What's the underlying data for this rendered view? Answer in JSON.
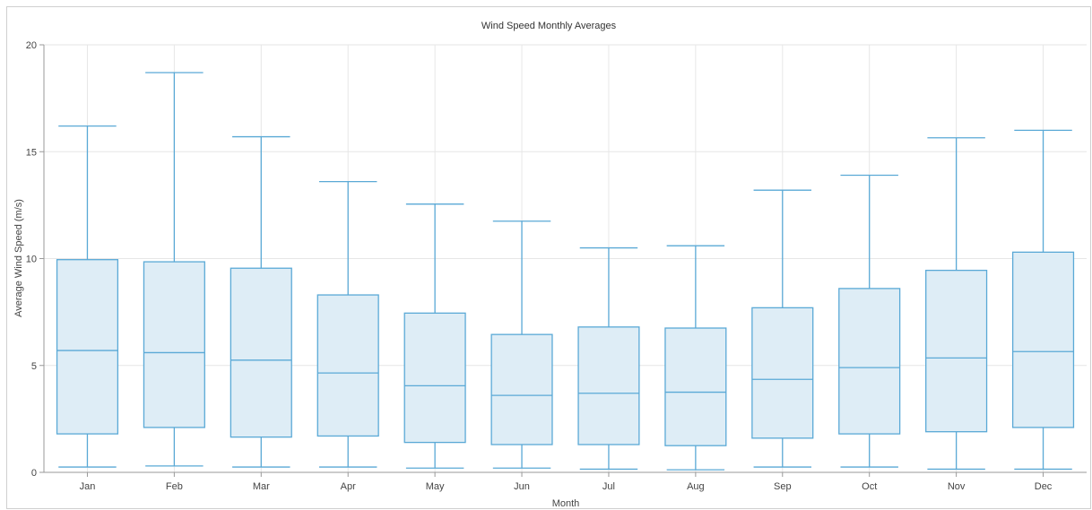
{
  "chart_data": {
    "type": "boxplot",
    "title": "Wind Speed Monthly Averages",
    "xlabel": "Month",
    "ylabel": "Average Wind Speed (m/s)",
    "ylim": [
      0,
      20
    ],
    "yticks": [
      0,
      5,
      10,
      15,
      20
    ],
    "grid": true,
    "colors": {
      "stroke": "#5aa9d6",
      "fill": "#deedf6",
      "grid": "#e6e6e6",
      "axis": "#999999"
    },
    "categories": [
      "Jan",
      "Feb",
      "Mar",
      "Apr",
      "May",
      "Jun",
      "Jul",
      "Aug",
      "Sep",
      "Oct",
      "Nov",
      "Dec"
    ],
    "boxes": [
      {
        "min": 0.25,
        "q1": 1.8,
        "median": 5.7,
        "q3": 9.95,
        "max": 16.2
      },
      {
        "min": 0.3,
        "q1": 2.1,
        "median": 5.6,
        "q3": 9.85,
        "max": 18.7
      },
      {
        "min": 0.25,
        "q1": 1.65,
        "median": 5.25,
        "q3": 9.55,
        "max": 15.7
      },
      {
        "min": 0.25,
        "q1": 1.7,
        "median": 4.65,
        "q3": 8.3,
        "max": 13.6
      },
      {
        "min": 0.2,
        "q1": 1.4,
        "median": 4.05,
        "q3": 7.45,
        "max": 12.55
      },
      {
        "min": 0.2,
        "q1": 1.3,
        "median": 3.6,
        "q3": 6.45,
        "max": 11.75
      },
      {
        "min": 0.15,
        "q1": 1.3,
        "median": 3.7,
        "q3": 6.8,
        "max": 10.5
      },
      {
        "min": 0.12,
        "q1": 1.25,
        "median": 3.75,
        "q3": 6.75,
        "max": 10.6
      },
      {
        "min": 0.25,
        "q1": 1.6,
        "median": 4.35,
        "q3": 7.7,
        "max": 13.2
      },
      {
        "min": 0.25,
        "q1": 1.8,
        "median": 4.9,
        "q3": 8.6,
        "max": 13.9
      },
      {
        "min": 0.15,
        "q1": 1.9,
        "median": 5.35,
        "q3": 9.45,
        "max": 15.65
      },
      {
        "min": 0.15,
        "q1": 2.1,
        "median": 5.65,
        "q3": 10.3,
        "max": 16.0
      }
    ]
  }
}
